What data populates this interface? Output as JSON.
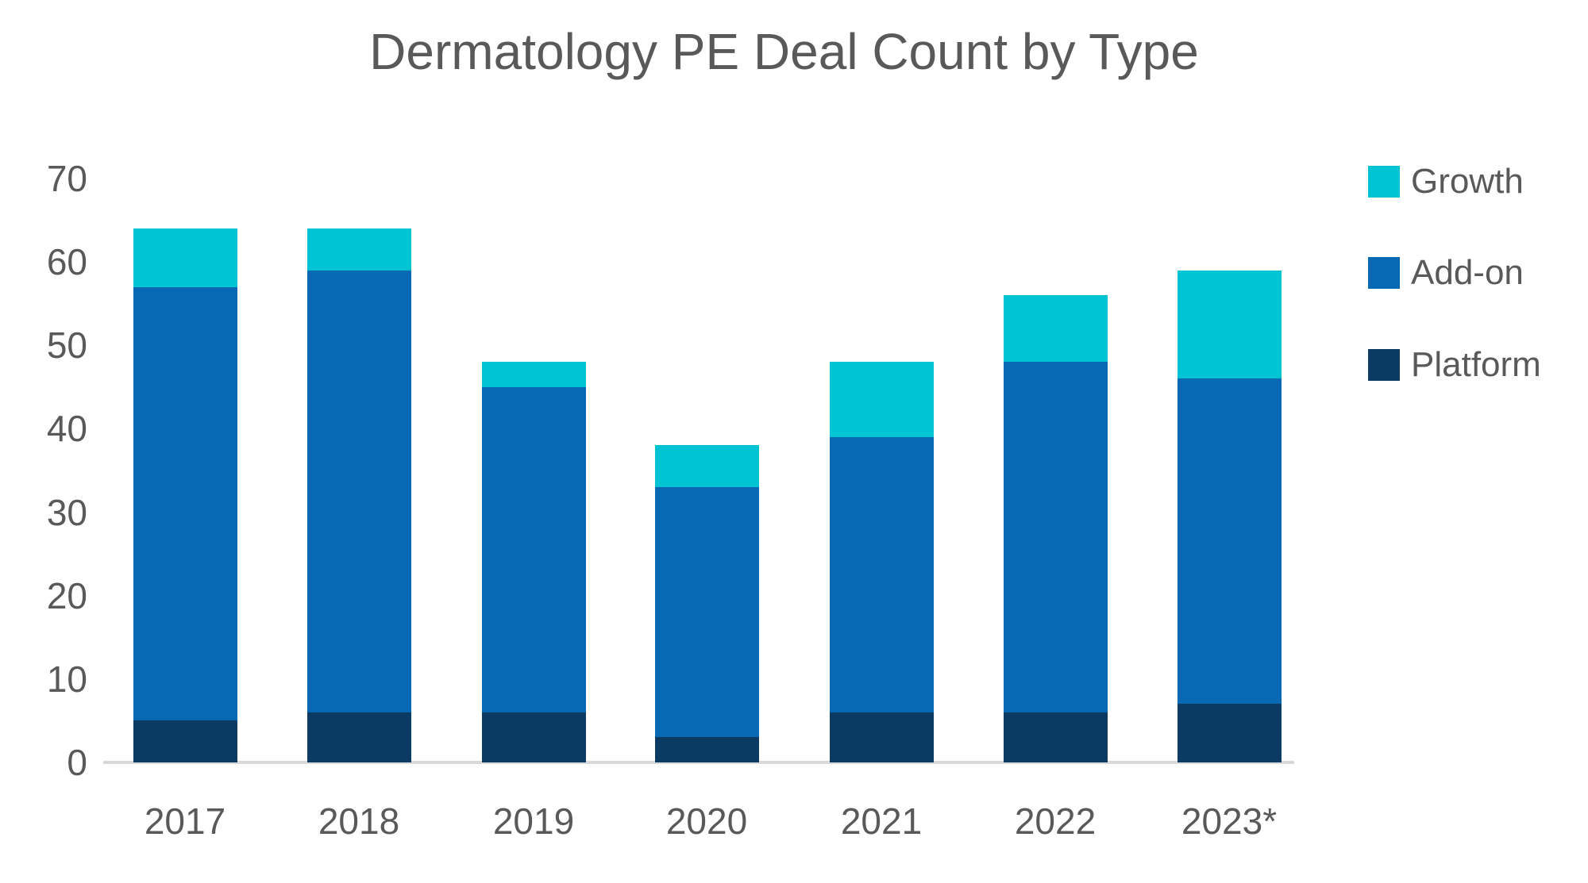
{
  "title": "Dermatology PE Deal Count by Type",
  "colors": {
    "growth": "#00C4D4",
    "addon": "#0769B3",
    "platform": "#0B3B63",
    "axis_line": "#D9D9D9",
    "text": "#595959"
  },
  "legend": {
    "position": "right",
    "items": [
      {
        "label": "Growth",
        "color": "#00C4D4"
      },
      {
        "label": "Add-on",
        "color": "#0769B3"
      },
      {
        "label": "Platform",
        "color": "#0B3B63"
      }
    ]
  },
  "chart_data": {
    "type": "bar",
    "stacked": true,
    "title": "Dermatology PE Deal Count by Type",
    "categories": [
      "2017",
      "2018",
      "2019",
      "2020",
      "2021",
      "2022",
      "2023*"
    ],
    "series": [
      {
        "name": "Platform",
        "color": "#0B3B63",
        "values": [
          5,
          6,
          6,
          3,
          6,
          6,
          7
        ]
      },
      {
        "name": "Add-on",
        "color": "#0769B3",
        "values": [
          52,
          53,
          39,
          30,
          33,
          42,
          39
        ]
      },
      {
        "name": "Growth",
        "color": "#00C4D4",
        "values": [
          7,
          5,
          3,
          5,
          9,
          8,
          13
        ]
      }
    ],
    "totals": [
      64,
      64,
      48,
      38,
      48,
      56,
      59
    ],
    "xlabel": "",
    "ylabel": "",
    "ylim": [
      0,
      70
    ],
    "yticks": [
      0,
      10,
      20,
      30,
      40,
      50,
      60,
      70
    ],
    "grid": false,
    "legend_position": "right"
  }
}
